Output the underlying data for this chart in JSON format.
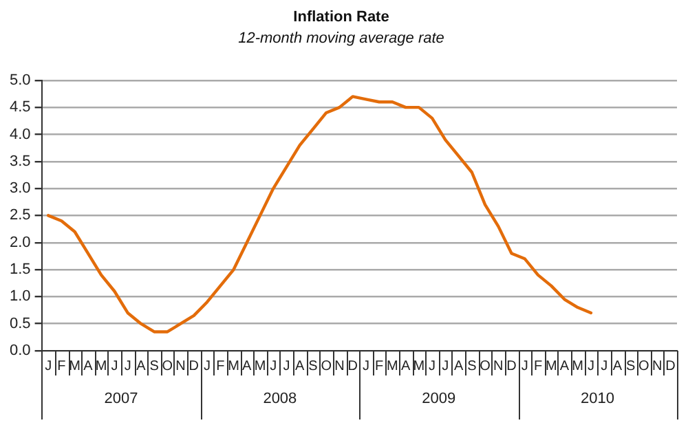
{
  "chart_data": {
    "type": "line",
    "title": "Inflation Rate",
    "subtitle": "12-month moving average rate",
    "categories": [
      "J",
      "F",
      "M",
      "A",
      "M",
      "J",
      "J",
      "A",
      "S",
      "O",
      "N",
      "D",
      "J",
      "F",
      "M",
      "A",
      "M",
      "J",
      "J",
      "A",
      "S",
      "O",
      "N",
      "D",
      "J",
      "F",
      "M",
      "A",
      "M",
      "J",
      "J",
      "A",
      "S",
      "O",
      "N",
      "D",
      "J",
      "F",
      "M",
      "A",
      "M",
      "J",
      "J",
      "A",
      "S",
      "O",
      "N",
      "D"
    ],
    "series": [
      {
        "color": "#e36c0a",
        "values": [
          2.5,
          2.4,
          2.2,
          1.8,
          1.4,
          1.1,
          0.7,
          0.5,
          0.35,
          0.35,
          0.5,
          0.65,
          0.9,
          1.2,
          1.5,
          2.0,
          2.5,
          3.0,
          3.4,
          3.8,
          4.1,
          4.4,
          4.5,
          4.7,
          4.65,
          4.6,
          4.6,
          4.5,
          4.5,
          4.3,
          3.9,
          3.6,
          3.3,
          2.7,
          2.3,
          1.8,
          1.7,
          1.4,
          1.2,
          0.95,
          0.8,
          0.7,
          null,
          null,
          null,
          null,
          null,
          null
        ]
      }
    ],
    "annotations": [
      "2007",
      "2008",
      "2009",
      "2010"
    ],
    "ylim": [
      0,
      5
    ],
    "yticks": [
      {
        "value": 0,
        "label": "0.0"
      },
      {
        "value": 0.5,
        "label": "0.5"
      },
      {
        "value": 1,
        "label": "1.0"
      },
      {
        "value": 1.5,
        "label": "1.5"
      },
      {
        "value": 2,
        "label": "2.0"
      },
      {
        "value": 2.5,
        "label": "2.5"
      },
      {
        "value": 3,
        "label": "3.0"
      },
      {
        "value": 3.5,
        "label": "3.5"
      },
      {
        "value": 4,
        "label": "4.0"
      },
      {
        "value": 4.5,
        "label": "4.5"
      },
      {
        "value": 5,
        "label": "5.0"
      }
    ],
    "grid": "y",
    "legend": false,
    "marker": "none",
    "line_style": "solid"
  }
}
